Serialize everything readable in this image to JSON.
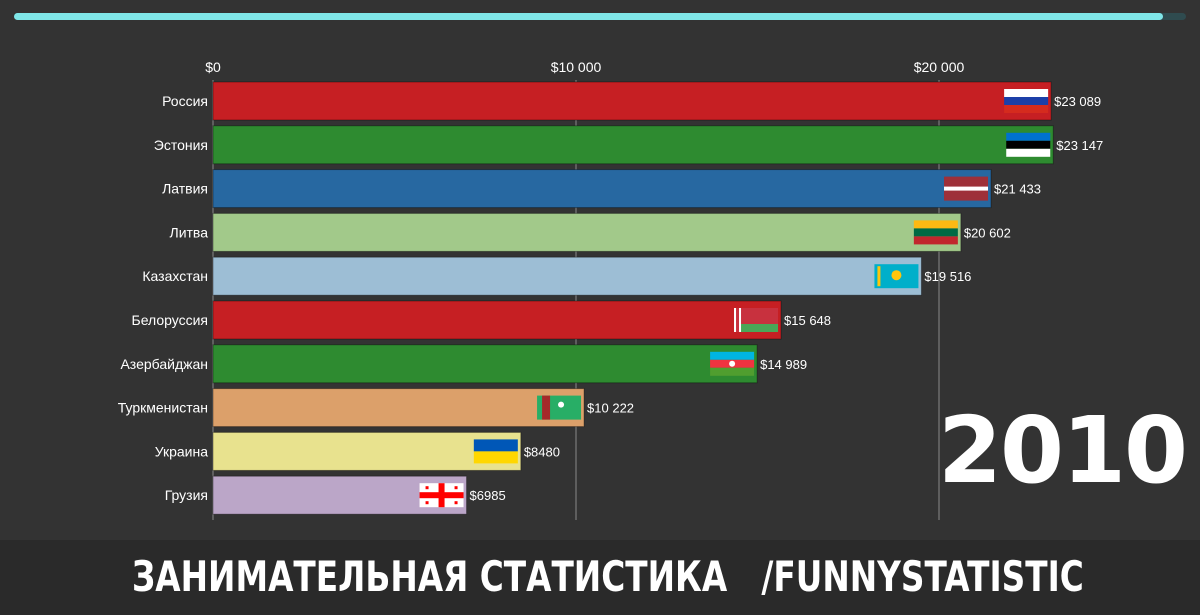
{
  "progress": 0.98,
  "year": "2010",
  "footer": {
    "title": "ЗАНИМАТЕЛЬНАЯ СТАТИСТИКА",
    "handle": "/FUNNYSTATISTIC"
  },
  "colors": {
    "background": "#333333",
    "text": "#ffffff",
    "grid": "#8a8a8a",
    "progress": "#7fe6e8"
  },
  "chart_data": {
    "type": "bar",
    "orientation": "horizontal",
    "xlim": [
      0,
      23500
    ],
    "xticks": [
      {
        "value": 0,
        "label": "$0"
      },
      {
        "value": 10000,
        "label": "$10 000"
      },
      {
        "value": 20000,
        "label": "$20 000"
      }
    ],
    "grid": true,
    "categories": [
      "Россия",
      "Эстония",
      "Латвия",
      "Литва",
      "Казахстан",
      "Белоруссия",
      "Азербайджан",
      "Туркменистан",
      "Украина",
      "Грузия"
    ],
    "values": [
      23089,
      23147,
      21433,
      20602,
      19516,
      15648,
      14989,
      10222,
      8480,
      6985
    ],
    "value_labels": [
      "$23 089",
      "$23 147",
      "$21 433",
      "$20 602",
      "$19 516",
      "$15 648",
      "$14 989",
      "$10 222",
      "$8480",
      "$6985"
    ],
    "bar_colors": [
      "#c61f23",
      "#2e8b30",
      "#2768a1",
      "#a2c98a",
      "#9dbed5",
      "#c61f23",
      "#2e8b30",
      "#dca06a",
      "#e8e28e",
      "#bba6c8"
    ],
    "flags": [
      "russia-flag",
      "estonia-flag",
      "latvia-flag",
      "lithuania-flag",
      "kazakhstan-flag",
      "belarus-flag",
      "azerbaijan-flag",
      "turkmenistan-flag",
      "ukraine-flag",
      "georgia-flag"
    ]
  }
}
